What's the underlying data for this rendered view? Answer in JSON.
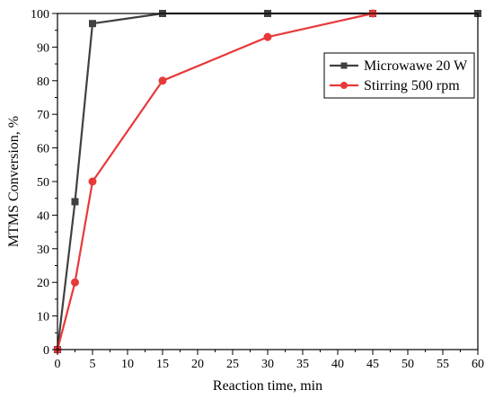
{
  "chart_data": {
    "type": "line",
    "xlabel": "Reaction time, min",
    "ylabel": "MTMS Conversion, %",
    "xlim": [
      0,
      60
    ],
    "ylim": [
      0,
      100
    ],
    "xticks": [
      0,
      5,
      10,
      15,
      20,
      25,
      30,
      35,
      40,
      45,
      50,
      55,
      60
    ],
    "yticks": [
      0,
      10,
      20,
      30,
      40,
      50,
      60,
      70,
      80,
      90,
      100
    ],
    "grid": false,
    "legend_position": "right",
    "series": [
      {
        "name": "Microwawe 20 W",
        "color": "#404040",
        "marker": "square",
        "x": [
          0,
          2.5,
          5,
          15,
          30,
          45,
          60
        ],
        "y": [
          0,
          44,
          97,
          100,
          100,
          100,
          100
        ]
      },
      {
        "name": "Stirring 500 rpm",
        "color": "#e8393a",
        "marker": "circle",
        "x": [
          0,
          2.5,
          5,
          15,
          30,
          45
        ],
        "y": [
          0,
          20,
          50,
          80,
          93,
          100
        ]
      }
    ]
  }
}
